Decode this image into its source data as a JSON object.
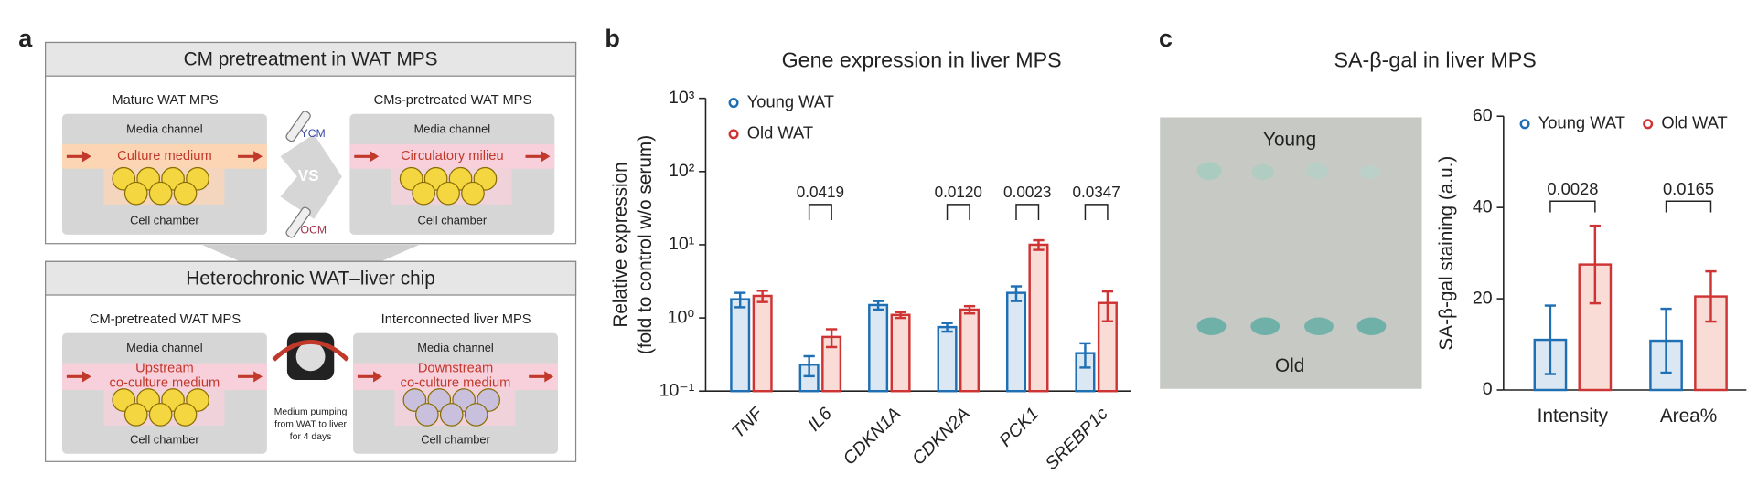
{
  "panel_labels": [
    "a",
    "b",
    "c"
  ],
  "diagram": {
    "top": {
      "title": "CM pretreatment in WAT MPS",
      "left": {
        "label": "Mature WAT MPS",
        "channel": "Media channel",
        "medium": [
          "Culture medium"
        ],
        "chamber": "Cell chamber"
      },
      "right": {
        "label": "CMs-pretreated WAT MPS",
        "channel": "Media channel",
        "medium": [
          "Circulatory milieu"
        ],
        "chamber": "Cell chamber"
      },
      "tubes": [
        "YCM",
        "OCM"
      ],
      "vs": "VS"
    },
    "bottom": {
      "title": "Heterochronic WAT–liver chip",
      "left": {
        "label": "CM-pretreated WAT MPS",
        "channel": "Media channel",
        "medium": [
          "Upstream",
          "co-culture medium"
        ],
        "chamber": "Cell chamber"
      },
      "right": {
        "label": "Interconnected liver MPS",
        "channel": "Media channel",
        "medium": [
          "Downstream",
          "co-culture medium"
        ],
        "chamber": "Cell chamber"
      },
      "pump": [
        "Medium pumping",
        "from WAT to liver",
        "for 4 days"
      ]
    }
  },
  "image": {
    "top": "Young",
    "bottom": "Old"
  },
  "chart_data": [
    {
      "type": "bar",
      "title": "Gene expression in liver MPS",
      "ylabel": [
        "Relative expression",
        "(fold to control w/o serum)"
      ],
      "categories": [
        "TNF",
        "IL6",
        "CDKN1A",
        "CDKN2A",
        "PCK1",
        "SREBP1c"
      ],
      "series": [
        {
          "name": "Young WAT",
          "color": "#1f6fb4",
          "fill": "#dbe8f4",
          "values": [
            1.8,
            0.23,
            1.5,
            0.75,
            2.2,
            0.33
          ],
          "errors": [
            0.4,
            0.07,
            0.2,
            0.1,
            0.5,
            0.12
          ]
        },
        {
          "name": "Old WAT",
          "color": "#cf3434",
          "fill": "#f9dcd6",
          "values": [
            2.0,
            0.55,
            1.1,
            1.3,
            10,
            1.6
          ],
          "errors": [
            0.35,
            0.15,
            0.1,
            0.15,
            1.5,
            0.7
          ]
        }
      ],
      "log_scale": true,
      "ylim": [
        0.1,
        1000
      ],
      "yticks": [
        {
          "value": 0.1,
          "label": "10⁻¹"
        },
        {
          "value": 1,
          "label": "10⁰"
        },
        {
          "value": 10,
          "label": "10¹"
        },
        {
          "value": 100,
          "label": "10²"
        },
        {
          "value": 1000,
          "label": "10³"
        }
      ],
      "legend": "top-left",
      "annotations": [
        {
          "label": "0.0419",
          "category": "IL6"
        },
        {
          "label": "0.0120",
          "category": "CDKN2A"
        },
        {
          "label": "0.0023",
          "category": "PCK1"
        },
        {
          "label": "0.0347",
          "category": "SREBP1c"
        }
      ]
    },
    {
      "type": "bar",
      "title": "SA-β-gal in liver MPS",
      "ylabel": [
        "SA-β-gal staining (a.u.)"
      ],
      "categories": [
        "Intensity",
        "Area%"
      ],
      "series": [
        {
          "name": "Young WAT",
          "color": "#1f6fb4",
          "fill": "#dbe8f4",
          "values": [
            11,
            10.8
          ],
          "errors": [
            7.5,
            7
          ]
        },
        {
          "name": "Old WAT",
          "color": "#cf3434",
          "fill": "#f9dcd6",
          "values": [
            27.5,
            20.5
          ],
          "errors": [
            8.5,
            5.5
          ]
        }
      ],
      "log_scale": false,
      "ylim": [
        0,
        60
      ],
      "yticks": [
        0,
        20,
        40,
        60
      ],
      "legend": "top",
      "annotations": [
        {
          "label": "0.0028",
          "category": "Intensity"
        },
        {
          "label": "0.0165",
          "category": "Area%"
        }
      ]
    }
  ]
}
